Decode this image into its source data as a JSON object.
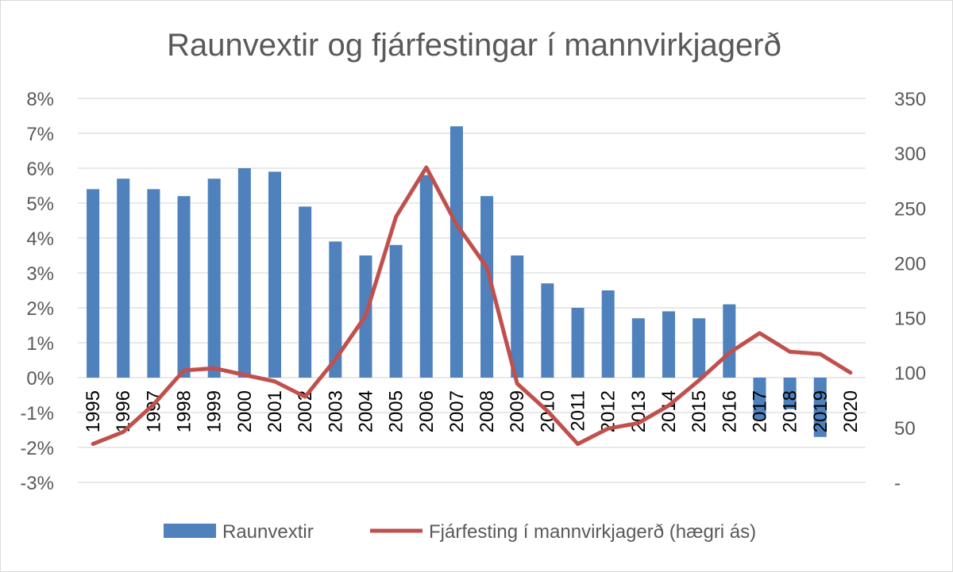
{
  "chart_data": {
    "type": "bar+line",
    "title": "Raunvextir og fjárfestingar í mannvirkjagerð",
    "categories": [
      "1995",
      "1996",
      "1997",
      "1998",
      "1999",
      "2000",
      "2001",
      "2002",
      "2003",
      "2004",
      "2005",
      "2006",
      "2007",
      "2008",
      "2009",
      "2010",
      "2011",
      "2012",
      "2013",
      "2014",
      "2015",
      "2016",
      "2017",
      "2018",
      "2019",
      "2020"
    ],
    "left_axis": {
      "min": -3,
      "max": 8,
      "step": 1,
      "tick_labels": [
        "-3%",
        "-2%",
        "-1%",
        "0%",
        "1%",
        "2%",
        "3%",
        "4%",
        "5%",
        "6%",
        "7%",
        "8%"
      ]
    },
    "right_axis": {
      "min": 0,
      "max": 350,
      "step": 50,
      "tick_labels": [
        "-",
        "50",
        "100",
        "150",
        "200",
        "250",
        "300",
        "350"
      ]
    },
    "series": [
      {
        "name": "Raunvextir",
        "type": "bar",
        "axis": "left",
        "color": "#4f81bd",
        "values": [
          5.4,
          5.7,
          5.4,
          5.2,
          5.7,
          6.0,
          5.9,
          4.9,
          3.9,
          3.5,
          3.8,
          5.8,
          7.2,
          5.2,
          3.5,
          2.7,
          2.0,
          2.5,
          1.7,
          1.9,
          1.7,
          2.1,
          -1.2,
          -0.9,
          -1.7,
          null
        ]
      },
      {
        "name": "Fjárfesting í mannvirkjagerð (hægri ás)",
        "type": "line",
        "axis": "right",
        "color": "#c0504d",
        "values": [
          35,
          46,
          71,
          102,
          104,
          98,
          92,
          78,
          112,
          152,
          242,
          287,
          235,
          196,
          90,
          65,
          35,
          49,
          54,
          70,
          93,
          118,
          136,
          119,
          117,
          100
        ]
      }
    ],
    "legend": "bottom",
    "grid": true
  }
}
